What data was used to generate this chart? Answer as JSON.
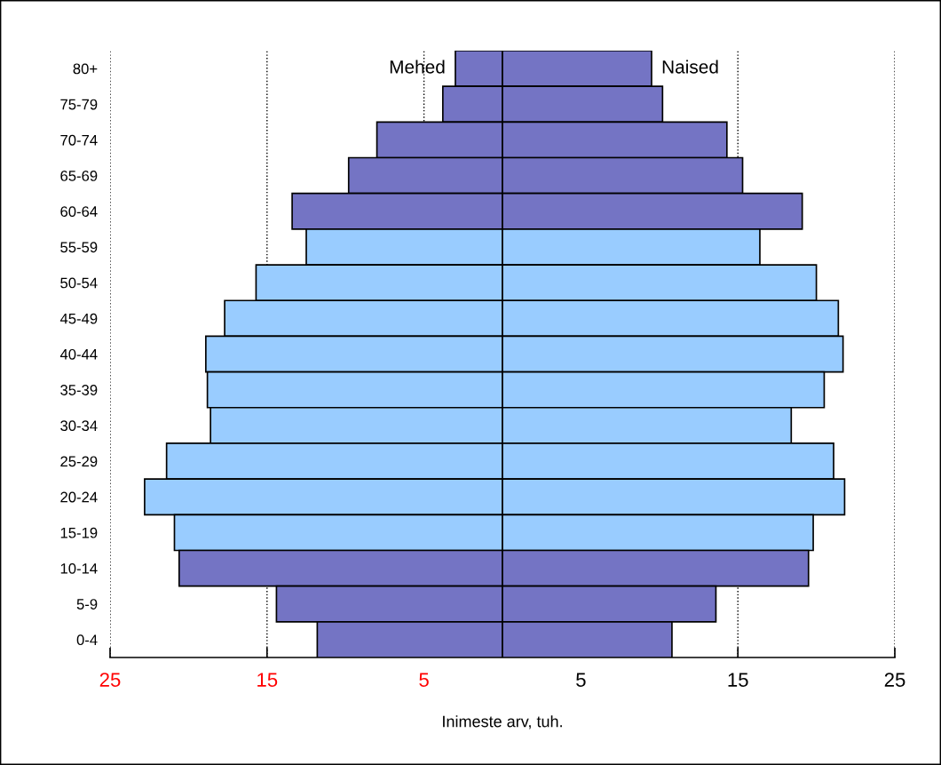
{
  "chart_data": {
    "type": "bar",
    "orientation": "horizontal",
    "xlabel": "Inimeste arv, tuh.",
    "categories": [
      "80+",
      "75-79",
      "70-74",
      "65-69",
      "60-64",
      "55-59",
      "50-54",
      "45-49",
      "40-44",
      "35-39",
      "30-34",
      "25-29",
      "20-24",
      "15-19",
      "10-14",
      "5-9",
      "0-4"
    ],
    "series": [
      {
        "name": "Mehed",
        "colors": [
          "#7474c4",
          "#7474c4",
          "#7474c4",
          "#7474c4",
          "#7474c4",
          "#99ccff",
          "#99ccff",
          "#99ccff",
          "#99ccff",
          "#99ccff",
          "#99ccff",
          "#99ccff",
          "#99ccff",
          "#99ccff",
          "#7474c4",
          "#7474c4",
          "#7474c4"
        ],
        "values": [
          -3.0,
          -3.8,
          -8.0,
          -9.8,
          -13.4,
          -12.5,
          -15.7,
          -17.7,
          -18.9,
          -18.8,
          -18.6,
          -21.4,
          -22.8,
          -20.9,
          -20.6,
          -14.4,
          -11.8
        ]
      },
      {
        "name": "Naised",
        "colors": [
          "#7474c4",
          "#7474c4",
          "#7474c4",
          "#7474c4",
          "#7474c4",
          "#99ccff",
          "#99ccff",
          "#99ccff",
          "#99ccff",
          "#99ccff",
          "#99ccff",
          "#99ccff",
          "#99ccff",
          "#99ccff",
          "#7474c4",
          "#7474c4",
          "#7474c4"
        ],
        "values": [
          9.5,
          10.2,
          14.3,
          15.3,
          19.1,
          16.4,
          20.0,
          21.4,
          21.7,
          20.5,
          18.4,
          21.1,
          21.8,
          19.8,
          19.5,
          13.6,
          10.8
        ]
      }
    ],
    "xlim": [
      -25,
      25
    ],
    "xticks": [
      {
        "value": -25,
        "label": "25"
      },
      {
        "value": -15,
        "label": "15"
      },
      {
        "value": -5,
        "label": "5"
      },
      5,
      15,
      25
    ],
    "grid": "x",
    "legend": false,
    "stacked": true
  }
}
